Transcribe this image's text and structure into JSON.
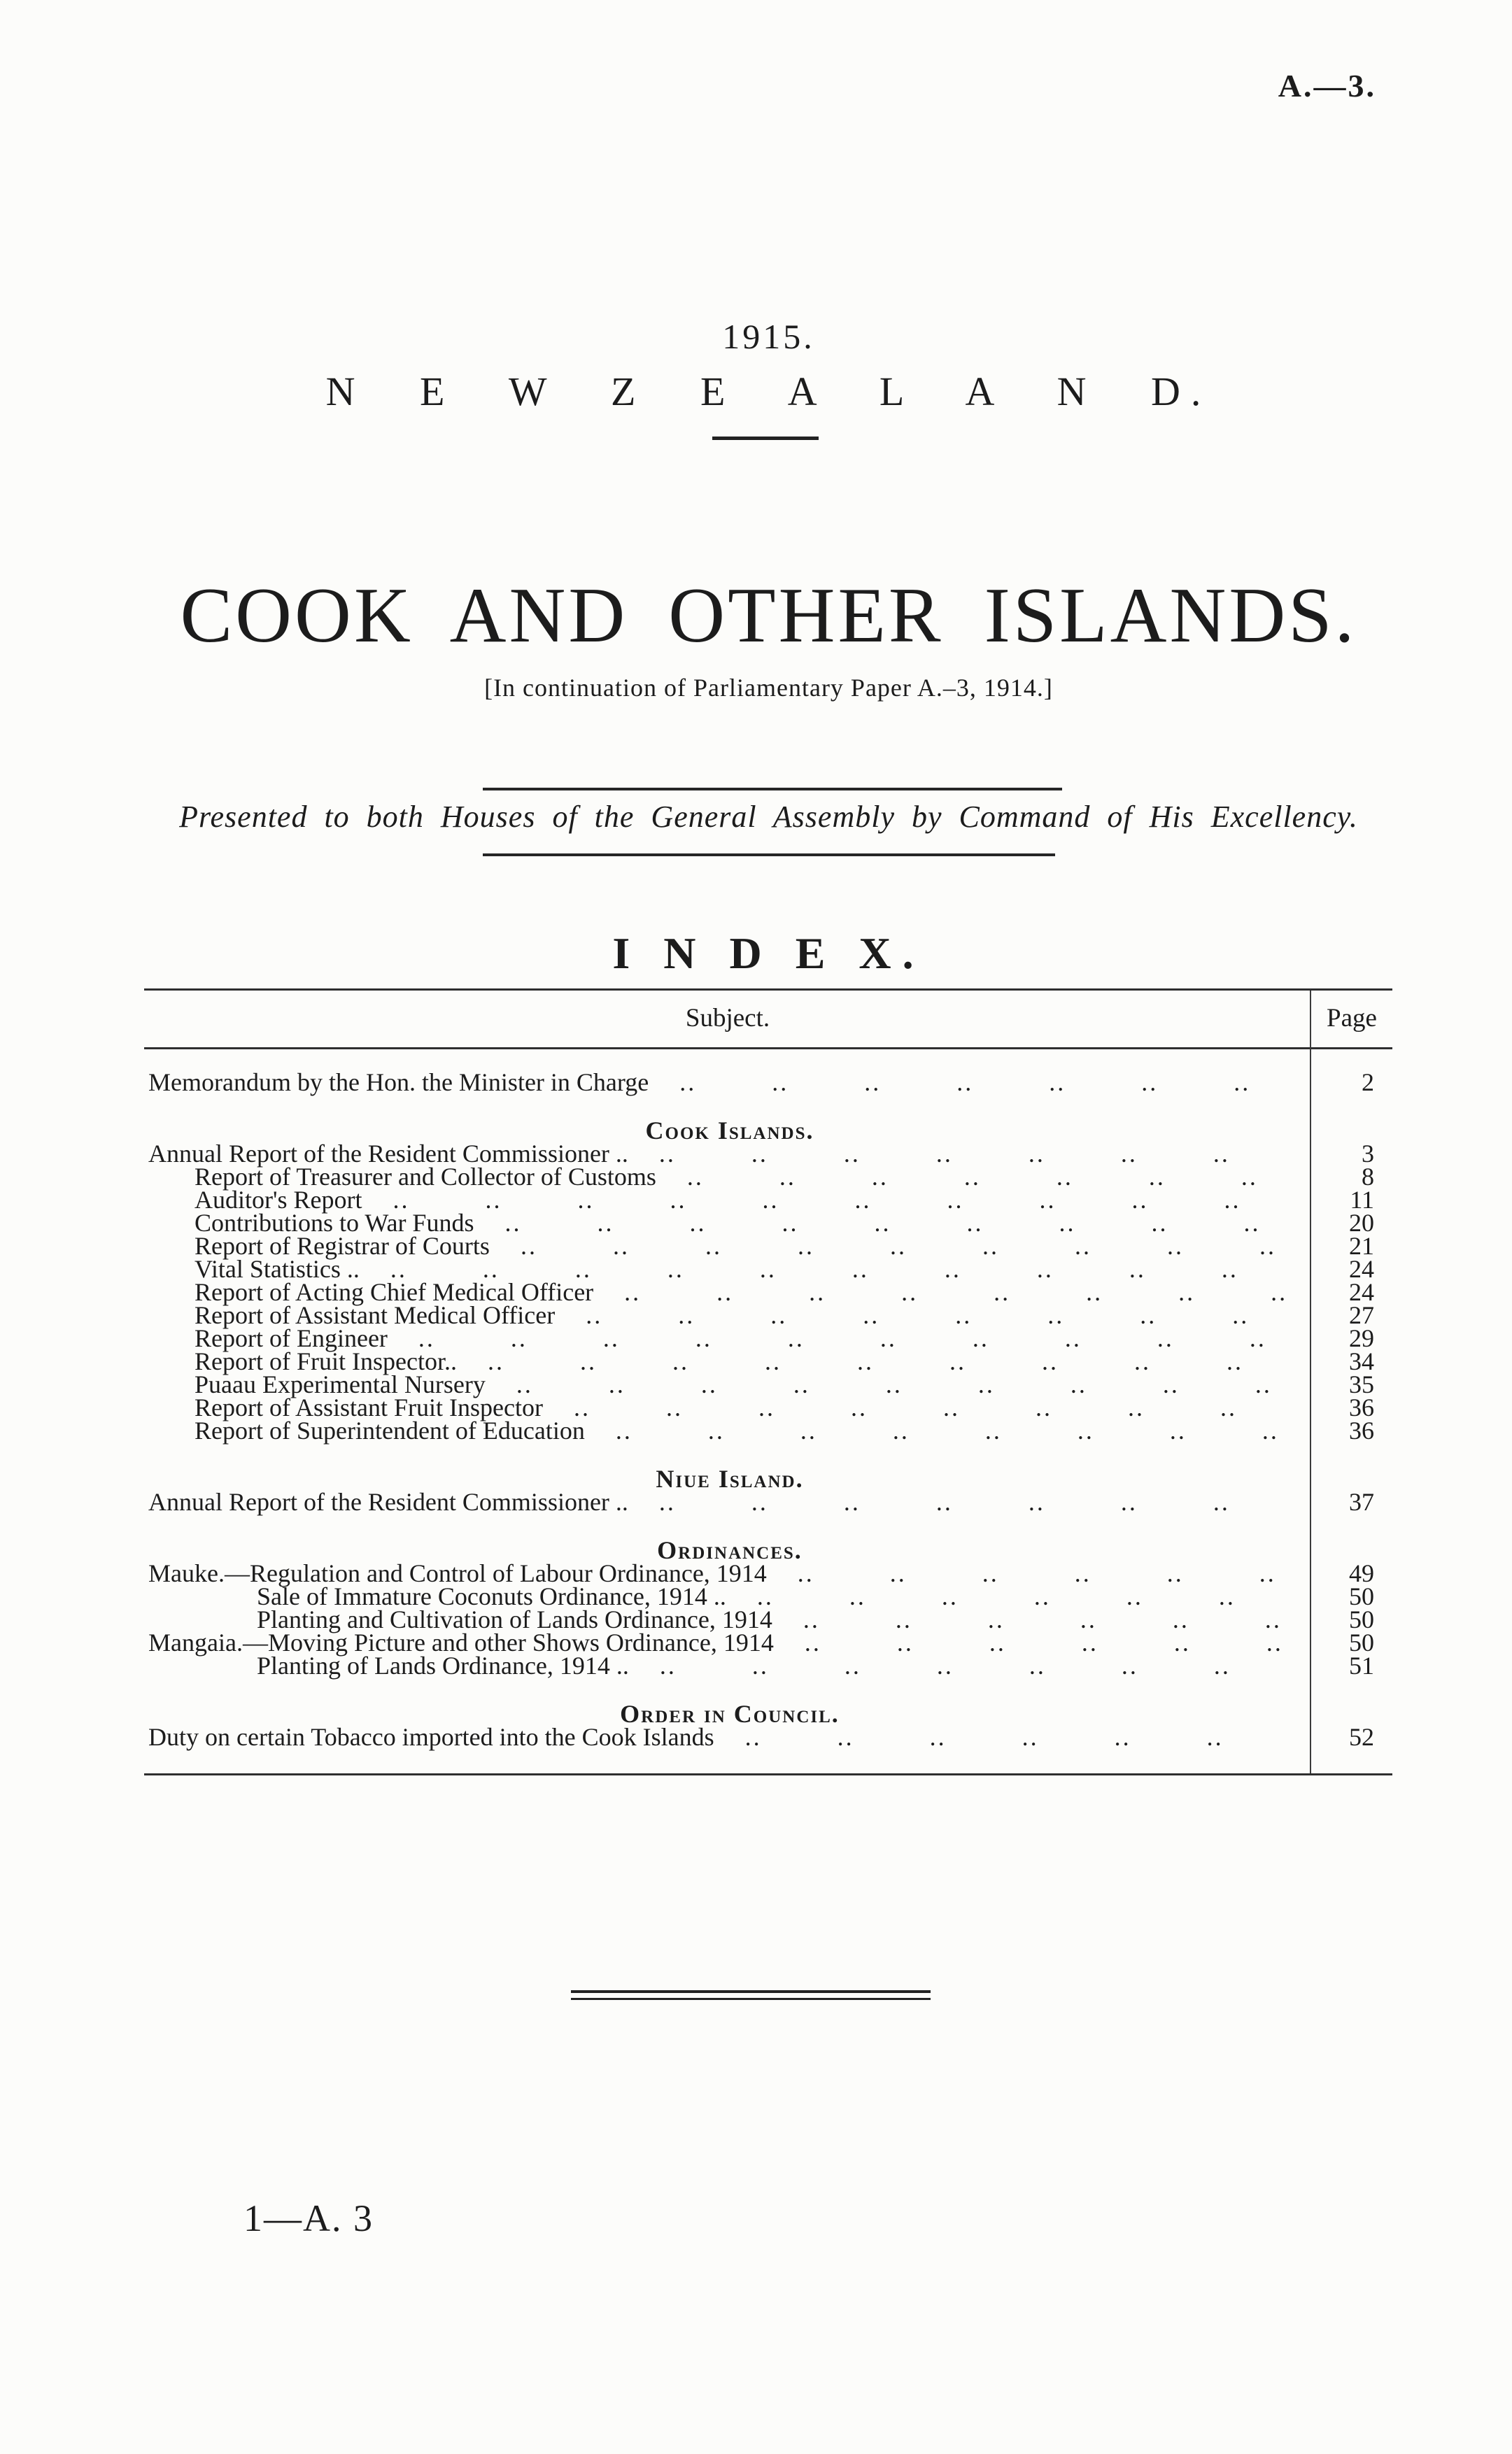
{
  "page": {
    "doc_ref": "A.—3.",
    "year": "1915.",
    "country": "N E W   Z E A L A N D.",
    "title": "COOK AND OTHER ISLANDS.",
    "continuation_note": "[In continuation of Parliamentary Paper A.–3, 1914.]",
    "presented_line": "Presented to both Houses of the General Assembly by Command of His Excellency.",
    "index_heading": "I N D E X.",
    "footer_ref": "1—A. 3",
    "ink_color": "#1c1c1c",
    "paper_color": "#fcfcfa"
  },
  "index": {
    "columns": {
      "subject": "Subject.",
      "page": "Page"
    },
    "leader_unit": "..",
    "rows": [
      {
        "type": "entry",
        "indent": 0,
        "title": "Memorandum by the Hon. the Minister in Charge",
        "page": "2"
      },
      {
        "type": "section",
        "title": "Cook Islands."
      },
      {
        "type": "entry",
        "indent": 0,
        "title": "Annual Report of the Resident Commissioner ..",
        "page": "3"
      },
      {
        "type": "entry",
        "indent": 1,
        "title": "Report of Treasurer and Collector of Customs",
        "page": "8"
      },
      {
        "type": "entry",
        "indent": 1,
        "title": "Auditor's Report",
        "page": "11"
      },
      {
        "type": "entry",
        "indent": 1,
        "title": "Contributions to War Funds",
        "page": "20"
      },
      {
        "type": "entry",
        "indent": 1,
        "title": "Report of Registrar of Courts",
        "page": "21"
      },
      {
        "type": "entry",
        "indent": 1,
        "title": "Vital Statistics ..",
        "page": "24"
      },
      {
        "type": "entry",
        "indent": 1,
        "title": "Report of Acting Chief Medical Officer",
        "page": "24"
      },
      {
        "type": "entry",
        "indent": 1,
        "title": "Report of Assistant Medical Officer",
        "page": "27"
      },
      {
        "type": "entry",
        "indent": 1,
        "title": "Report of Engineer",
        "page": "29"
      },
      {
        "type": "entry",
        "indent": 1,
        "title": "Report of Fruit Inspector..",
        "page": "34"
      },
      {
        "type": "entry",
        "indent": 1,
        "title": "Puaau Experimental Nursery",
        "page": "35"
      },
      {
        "type": "entry",
        "indent": 1,
        "title": "Report of Assistant Fruit Inspector",
        "page": "36"
      },
      {
        "type": "entry",
        "indent": 1,
        "title": "Report of Superintendent of Education",
        "page": "36"
      },
      {
        "type": "section",
        "title": "Niue Island."
      },
      {
        "type": "entry",
        "indent": 0,
        "title": "Annual Report of the Resident Commissioner ..",
        "page": "37"
      },
      {
        "type": "section",
        "title": "Ordinances."
      },
      {
        "type": "entry",
        "indent": 0,
        "title": "Mauke.—Regulation and Control of Labour Ordinance, 1914",
        "page": "49"
      },
      {
        "type": "entry",
        "indent": 2,
        "title": "Sale of Immature Coconuts Ordinance, 1914 ..",
        "page": "50"
      },
      {
        "type": "entry",
        "indent": 2,
        "title": "Planting and Cultivation of Lands Ordinance, 1914",
        "page": "50"
      },
      {
        "type": "entry",
        "indent": 0,
        "title": "Mangaia.—Moving Picture and other Shows Ordinance, 1914",
        "page": "50"
      },
      {
        "type": "entry",
        "indent": 2,
        "title": "Planting of Lands Ordinance, 1914 ..",
        "page": "51"
      },
      {
        "type": "section",
        "title": "Order in Council."
      },
      {
        "type": "entry",
        "indent": 0,
        "title": "Duty on certain Tobacco imported into the Cook Islands",
        "page": "52"
      }
    ]
  }
}
